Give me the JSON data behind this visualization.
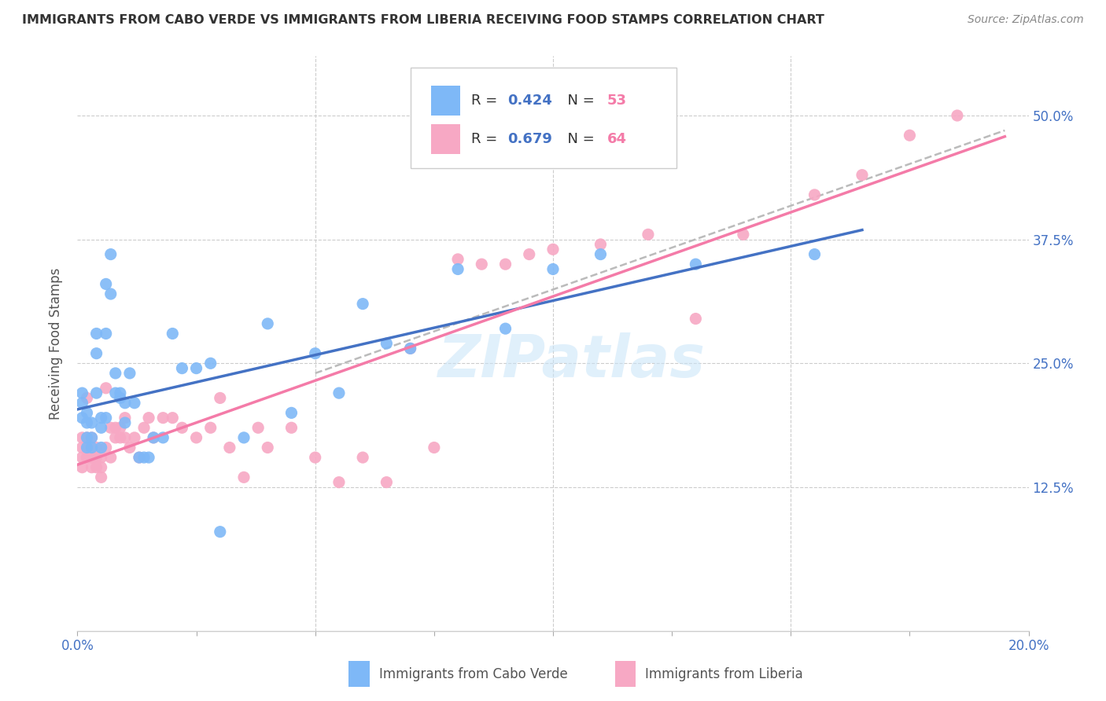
{
  "title": "IMMIGRANTS FROM CABO VERDE VS IMMIGRANTS FROM LIBERIA RECEIVING FOOD STAMPS CORRELATION CHART",
  "source": "Source: ZipAtlas.com",
  "ylabel": "Receiving Food Stamps",
  "ytick_labels": [
    "12.5%",
    "25.0%",
    "37.5%",
    "50.0%"
  ],
  "ytick_values": [
    0.125,
    0.25,
    0.375,
    0.5
  ],
  "xlim": [
    0.0,
    0.2
  ],
  "ylim": [
    -0.02,
    0.56
  ],
  "cabo_verde_color": "#7EB8F7",
  "liberia_color": "#F7A8C4",
  "cabo_verde_line_color": "#4472C4",
  "liberia_line_color": "#F47BA8",
  "dashed_line_color": "#BBBBBB",
  "cabo_verde_R": 0.424,
  "cabo_verde_N": 53,
  "liberia_R": 0.679,
  "liberia_N": 64,
  "legend_R_color": "#4472C4",
  "legend_N_color": "#F47BA8",
  "cabo_verde_label": "Immigrants from Cabo Verde",
  "liberia_label": "Immigrants from Liberia",
  "watermark": "ZIPatlas",
  "cabo_verde_x": [
    0.001,
    0.001,
    0.001,
    0.002,
    0.002,
    0.002,
    0.002,
    0.003,
    0.003,
    0.003,
    0.004,
    0.004,
    0.004,
    0.005,
    0.005,
    0.005,
    0.006,
    0.006,
    0.006,
    0.007,
    0.007,
    0.008,
    0.008,
    0.009,
    0.009,
    0.01,
    0.01,
    0.011,
    0.012,
    0.013,
    0.014,
    0.015,
    0.016,
    0.018,
    0.02,
    0.022,
    0.025,
    0.028,
    0.03,
    0.035,
    0.04,
    0.045,
    0.05,
    0.055,
    0.06,
    0.065,
    0.07,
    0.08,
    0.09,
    0.1,
    0.11,
    0.13,
    0.155
  ],
  "cabo_verde_y": [
    0.195,
    0.21,
    0.22,
    0.19,
    0.2,
    0.175,
    0.165,
    0.19,
    0.175,
    0.165,
    0.28,
    0.26,
    0.22,
    0.195,
    0.185,
    0.165,
    0.33,
    0.28,
    0.195,
    0.36,
    0.32,
    0.24,
    0.22,
    0.22,
    0.215,
    0.21,
    0.19,
    0.24,
    0.21,
    0.155,
    0.155,
    0.155,
    0.175,
    0.175,
    0.28,
    0.245,
    0.245,
    0.25,
    0.08,
    0.175,
    0.29,
    0.2,
    0.26,
    0.22,
    0.31,
    0.27,
    0.265,
    0.345,
    0.285,
    0.345,
    0.36,
    0.35,
    0.36
  ],
  "liberia_x": [
    0.001,
    0.001,
    0.001,
    0.001,
    0.002,
    0.002,
    0.002,
    0.002,
    0.002,
    0.003,
    0.003,
    0.003,
    0.004,
    0.004,
    0.004,
    0.005,
    0.005,
    0.005,
    0.006,
    0.006,
    0.007,
    0.007,
    0.008,
    0.008,
    0.009,
    0.009,
    0.01,
    0.01,
    0.011,
    0.012,
    0.013,
    0.014,
    0.015,
    0.016,
    0.018,
    0.02,
    0.022,
    0.025,
    0.028,
    0.03,
    0.032,
    0.035,
    0.038,
    0.04,
    0.045,
    0.05,
    0.055,
    0.06,
    0.065,
    0.07,
    0.075,
    0.08,
    0.085,
    0.09,
    0.095,
    0.1,
    0.11,
    0.12,
    0.13,
    0.14,
    0.155,
    0.165,
    0.175,
    0.185
  ],
  "liberia_y": [
    0.155,
    0.165,
    0.175,
    0.145,
    0.155,
    0.165,
    0.175,
    0.155,
    0.215,
    0.145,
    0.155,
    0.175,
    0.145,
    0.155,
    0.165,
    0.135,
    0.145,
    0.155,
    0.225,
    0.165,
    0.155,
    0.185,
    0.175,
    0.185,
    0.175,
    0.185,
    0.175,
    0.195,
    0.165,
    0.175,
    0.155,
    0.185,
    0.195,
    0.175,
    0.195,
    0.195,
    0.185,
    0.175,
    0.185,
    0.215,
    0.165,
    0.135,
    0.185,
    0.165,
    0.185,
    0.155,
    0.13,
    0.155,
    0.13,
    0.265,
    0.165,
    0.355,
    0.35,
    0.35,
    0.36,
    0.365,
    0.37,
    0.38,
    0.295,
    0.38,
    0.42,
    0.44,
    0.48,
    0.5
  ]
}
